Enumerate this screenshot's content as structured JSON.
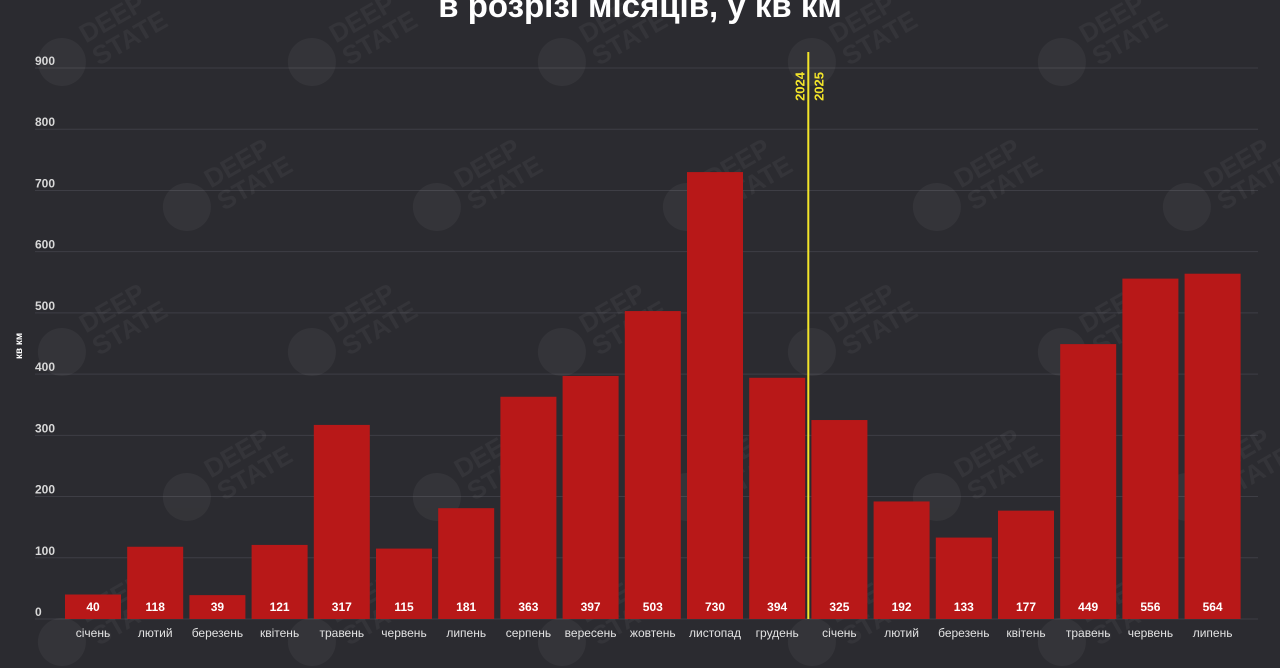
{
  "chart_data": {
    "type": "bar",
    "title": "в розрізі місяців, у кв км",
    "ylabel": "кв км",
    "ylim": [
      0,
      900
    ],
    "yticks": [
      0,
      100,
      200,
      300,
      400,
      500,
      600,
      700,
      800,
      900
    ],
    "grid": true,
    "categories": [
      "січень",
      "лютий",
      "березень",
      "квітень",
      "травень",
      "червень",
      "липень",
      "серпень",
      "вересень",
      "жовтень",
      "листопад",
      "грудень",
      "січень",
      "лютий",
      "березень",
      "квітень",
      "травень",
      "червень",
      "липень"
    ],
    "values": [
      40,
      118,
      39,
      121,
      317,
      115,
      181,
      363,
      397,
      503,
      730,
      394,
      325,
      192,
      133,
      177,
      449,
      556,
      564
    ],
    "bar_color": "#b81818",
    "divider": {
      "after_index": 11,
      "color": "#f3e52a",
      "label_left": "2024",
      "label_right": "2025"
    },
    "watermark": "DEEP STATE"
  }
}
